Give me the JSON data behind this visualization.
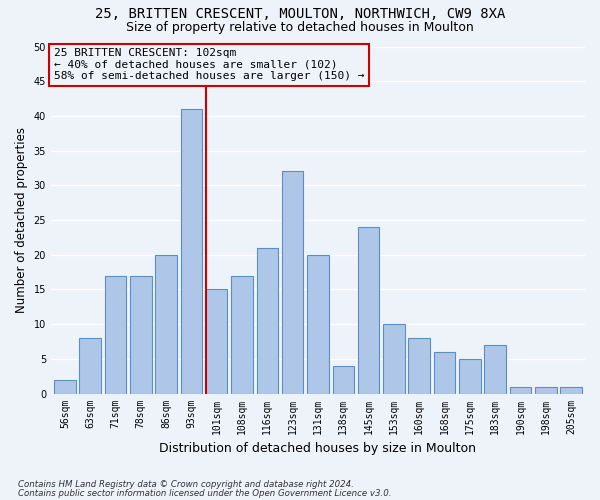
{
  "title1": "25, BRITTEN CRESCENT, MOULTON, NORTHWICH, CW9 8XA",
  "title2": "Size of property relative to detached houses in Moulton",
  "xlabel": "Distribution of detached houses by size in Moulton",
  "ylabel": "Number of detached properties",
  "categories": [
    "56sqm",
    "63sqm",
    "71sqm",
    "78sqm",
    "86sqm",
    "93sqm",
    "101sqm",
    "108sqm",
    "116sqm",
    "123sqm",
    "131sqm",
    "138sqm",
    "145sqm",
    "153sqm",
    "160sqm",
    "168sqm",
    "175sqm",
    "183sqm",
    "190sqm",
    "198sqm",
    "205sqm"
  ],
  "values": [
    2,
    8,
    17,
    17,
    20,
    41,
    15,
    17,
    21,
    32,
    20,
    4,
    24,
    10,
    8,
    6,
    5,
    7,
    1,
    1,
    1
  ],
  "bar_color": "#aec6e8",
  "bar_edge_color": "#5a8fc2",
  "bar_linewidth": 0.8,
  "vline_index": 6,
  "vline_color": "#cc0000",
  "annotation_line1": "25 BRITTEN CRESCENT: 102sqm",
  "annotation_line2": "← 40% of detached houses are smaller (102)",
  "annotation_line3": "58% of semi-detached houses are larger (150) →",
  "annotation_box_color": "#cc0000",
  "annotation_text_size": 8,
  "ylim": [
    0,
    50
  ],
  "yticks": [
    0,
    5,
    10,
    15,
    20,
    25,
    30,
    35,
    40,
    45,
    50
  ],
  "footnote1": "Contains HM Land Registry data © Crown copyright and database right 2024.",
  "footnote2": "Contains public sector information licensed under the Open Government Licence v3.0.",
  "background_color": "#eef2f9",
  "grid_color": "#ffffff",
  "title1_fontsize": 10,
  "title2_fontsize": 9,
  "xlabel_fontsize": 9,
  "ylabel_fontsize": 8.5,
  "tick_fontsize": 7
}
